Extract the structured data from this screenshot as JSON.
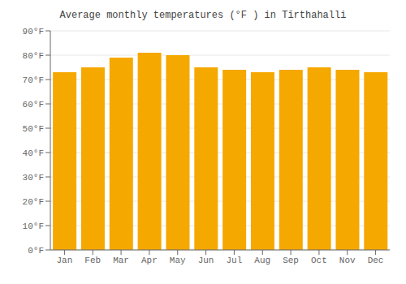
{
  "chart_data": {
    "type": "bar",
    "title": "Average monthly temperatures (°F ) in Tīrthahalli",
    "categories": [
      "Jan",
      "Feb",
      "Mar",
      "Apr",
      "May",
      "Jun",
      "Jul",
      "Aug",
      "Sep",
      "Oct",
      "Nov",
      "Dec"
    ],
    "values": [
      73,
      75,
      79,
      81,
      80,
      75,
      74,
      73,
      74,
      75,
      74,
      73
    ],
    "color": "#F5A800",
    "ylim": [
      0,
      90
    ],
    "yticks": [
      {
        "value": 0,
        "label": "0°F"
      },
      {
        "value": 10,
        "label": "10°F"
      },
      {
        "value": 20,
        "label": "20°F"
      },
      {
        "value": 30,
        "label": "30°F"
      },
      {
        "value": 40,
        "label": "40°F"
      },
      {
        "value": 50,
        "label": "50°F"
      },
      {
        "value": 60,
        "label": "60°F"
      },
      {
        "value": 70,
        "label": "70°F"
      },
      {
        "value": 80,
        "label": "80°F"
      },
      {
        "value": 90,
        "label": "90°F"
      }
    ],
    "grid": true
  }
}
